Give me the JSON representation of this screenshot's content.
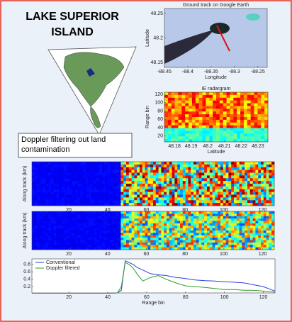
{
  "title": "LAKE SUPERIOR ISLAND",
  "note": "Doppler filtering out land contamination",
  "chart_data": [
    {
      "type": "image",
      "title": "Ground track on Google Earth",
      "xlabel": "Longitude",
      "ylabel": "Latitude",
      "xlim": [
        -88.45,
        -88.23
      ],
      "ylim": [
        48.14,
        48.26
      ],
      "xticks": [
        -88.45,
        -88.4,
        -88.35,
        -88.3,
        -88.25
      ],
      "yticks": [
        48.15,
        48.2,
        48.25
      ]
    },
    {
      "type": "heatmap",
      "title": "IE radargram",
      "xlabel": "Latitude",
      "ylabel": "Range bin",
      "xlim": [
        48.174,
        48.236
      ],
      "ylim": [
        6,
        125
      ],
      "xticks": [
        48.18,
        48.19,
        48.2,
        48.21,
        48.22,
        48.23
      ],
      "yticks": [
        20,
        40,
        60,
        80,
        100,
        120
      ]
    },
    {
      "type": "heatmap",
      "ylabel": "Along track (km)",
      "xlim": [
        1,
        126
      ],
      "xticks": [
        20,
        40,
        60,
        80,
        100,
        120
      ]
    },
    {
      "type": "heatmap",
      "ylabel": "Along track (km)",
      "xlim": [
        1,
        126
      ],
      "xticks": [
        20,
        40,
        60,
        80,
        100,
        120
      ]
    },
    {
      "type": "line",
      "xlabel": "Range bin",
      "xlim": [
        1,
        126
      ],
      "ylim": [
        0.03,
        0.95
      ],
      "xticks": [
        20,
        40,
        60,
        80,
        100,
        120
      ],
      "yticks": [
        0.2,
        0.4,
        0.6,
        0.8
      ],
      "legend": "upper-left",
      "x": [
        1,
        10,
        20,
        30,
        40,
        45,
        47,
        49,
        51,
        53,
        55,
        58,
        62,
        66,
        70,
        75,
        80,
        85,
        90,
        95,
        100,
        105,
        110,
        115,
        120,
        124,
        126
      ],
      "series": [
        {
          "name": "Conventional",
          "color": "#2a3fd6",
          "values": [
            0.02,
            0.02,
            0.02,
            0.02,
            0.02,
            0.03,
            0.1,
            0.9,
            0.85,
            0.8,
            0.72,
            0.65,
            0.55,
            0.52,
            0.5,
            0.45,
            0.42,
            0.38,
            0.36,
            0.35,
            0.33,
            0.32,
            0.3,
            0.25,
            0.2,
            0.12,
            0.08
          ]
        },
        {
          "name": "Doppler filtered",
          "color": "#2e9a2e",
          "values": [
            0.02,
            0.02,
            0.02,
            0.02,
            0.02,
            0.03,
            0.2,
            0.85,
            0.8,
            0.7,
            0.55,
            0.35,
            0.45,
            0.5,
            0.4,
            0.3,
            0.22,
            0.2,
            0.18,
            0.15,
            0.12,
            0.12,
            0.1,
            0.1,
            0.08,
            0.06,
            0.05
          ]
        }
      ]
    }
  ]
}
